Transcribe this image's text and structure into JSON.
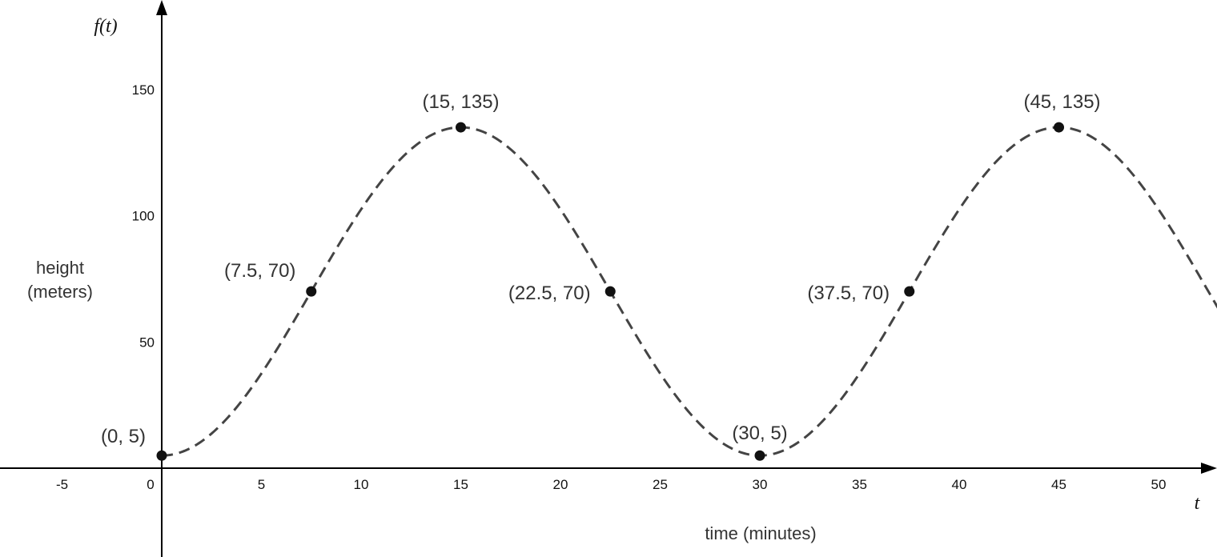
{
  "chart_data": {
    "type": "line",
    "title": "",
    "x_axis_variable": "t",
    "y_axis_variable": "f(t)",
    "xlabel": "time (minutes)",
    "ylabel": [
      "height",
      "(meters)"
    ],
    "xlim": [
      -8,
      53
    ],
    "ylim": [
      -35,
      185
    ],
    "x_ticks": [
      {
        "value": -5,
        "label": "-5"
      },
      {
        "value": 0,
        "label": "0"
      },
      {
        "value": 5,
        "label": "5"
      },
      {
        "value": 10,
        "label": "10"
      },
      {
        "value": 15,
        "label": "15"
      },
      {
        "value": 20,
        "label": "20"
      },
      {
        "value": 25,
        "label": "25"
      },
      {
        "value": 30,
        "label": "30"
      },
      {
        "value": 35,
        "label": "35"
      },
      {
        "value": 40,
        "label": "40"
      },
      {
        "value": 45,
        "label": "45"
      },
      {
        "value": 50,
        "label": "50"
      }
    ],
    "y_ticks": [
      {
        "value": 50,
        "label": "50"
      },
      {
        "value": 100,
        "label": "100"
      },
      {
        "value": 150,
        "label": "150"
      }
    ],
    "curve": {
      "style": "dashed",
      "amplitude": 65,
      "midline": 70,
      "period": 30,
      "x_start": 0,
      "x_end": 53
    },
    "points": [
      {
        "x": 0,
        "y": 5,
        "label": "(0, 5)"
      },
      {
        "x": 7.5,
        "y": 70,
        "label": "(7.5, 70)"
      },
      {
        "x": 15,
        "y": 135,
        "label": "(15, 135)"
      },
      {
        "x": 22.5,
        "y": 70,
        "label": "(22.5, 70)"
      },
      {
        "x": 30,
        "y": 5,
        "label": "(30, 5)"
      },
      {
        "x": 37.5,
        "y": 70,
        "label": "(37.5, 70)"
      },
      {
        "x": 45,
        "y": 135,
        "label": "(45, 135)"
      }
    ],
    "grid": false,
    "colors": {
      "curve": "#444444",
      "points": "#111111",
      "axes": "#000000"
    }
  }
}
